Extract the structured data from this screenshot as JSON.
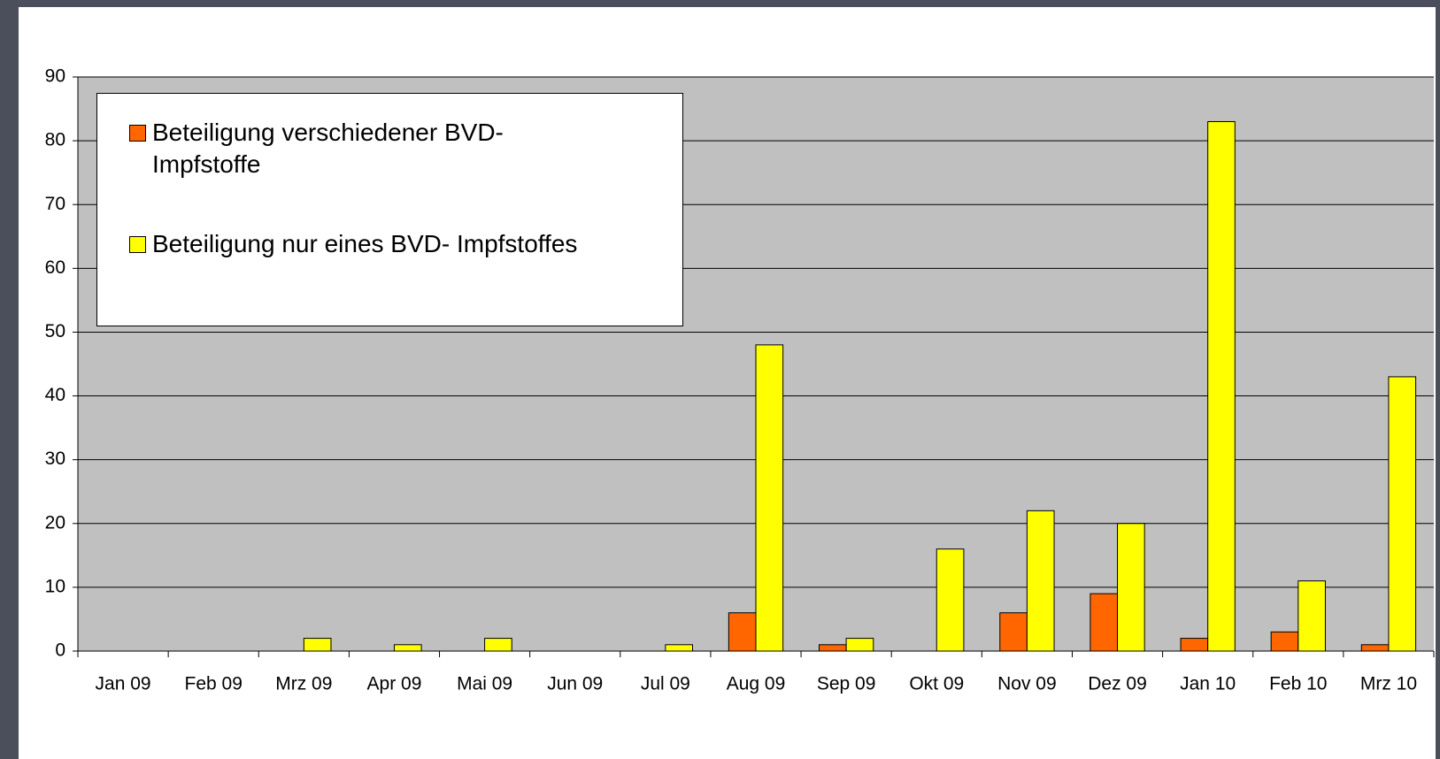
{
  "chart_data": {
    "type": "bar",
    "categories": [
      "Jan 09",
      "Feb 09",
      "Mrz 09",
      "Apr 09",
      "Mai 09",
      "Jun 09",
      "Jul 09",
      "Aug 09",
      "Sep 09",
      "Okt 09",
      "Nov 09",
      "Dez 09",
      "Jan 10",
      "Feb 10",
      "Mrz 10"
    ],
    "series": [
      {
        "name": "Beteiligung verschiedener  BVD-Impfstoffe",
        "color": "#ff6600",
        "values": [
          0,
          0,
          0,
          0,
          0,
          0,
          0,
          6,
          1,
          0,
          6,
          9,
          2,
          3,
          1
        ]
      },
      {
        "name": "Beteiligung nur eines BVD- Impfstoffes",
        "color": "#ffff00",
        "values": [
          0,
          0,
          2,
          1,
          2,
          0,
          1,
          48,
          2,
          16,
          22,
          20,
          83,
          11,
          43
        ]
      }
    ],
    "ylim": [
      0,
      90
    ],
    "yticks": [
      0,
      10,
      20,
      30,
      40,
      50,
      60,
      70,
      80,
      90
    ],
    "grid": true,
    "legend": "top-left"
  }
}
